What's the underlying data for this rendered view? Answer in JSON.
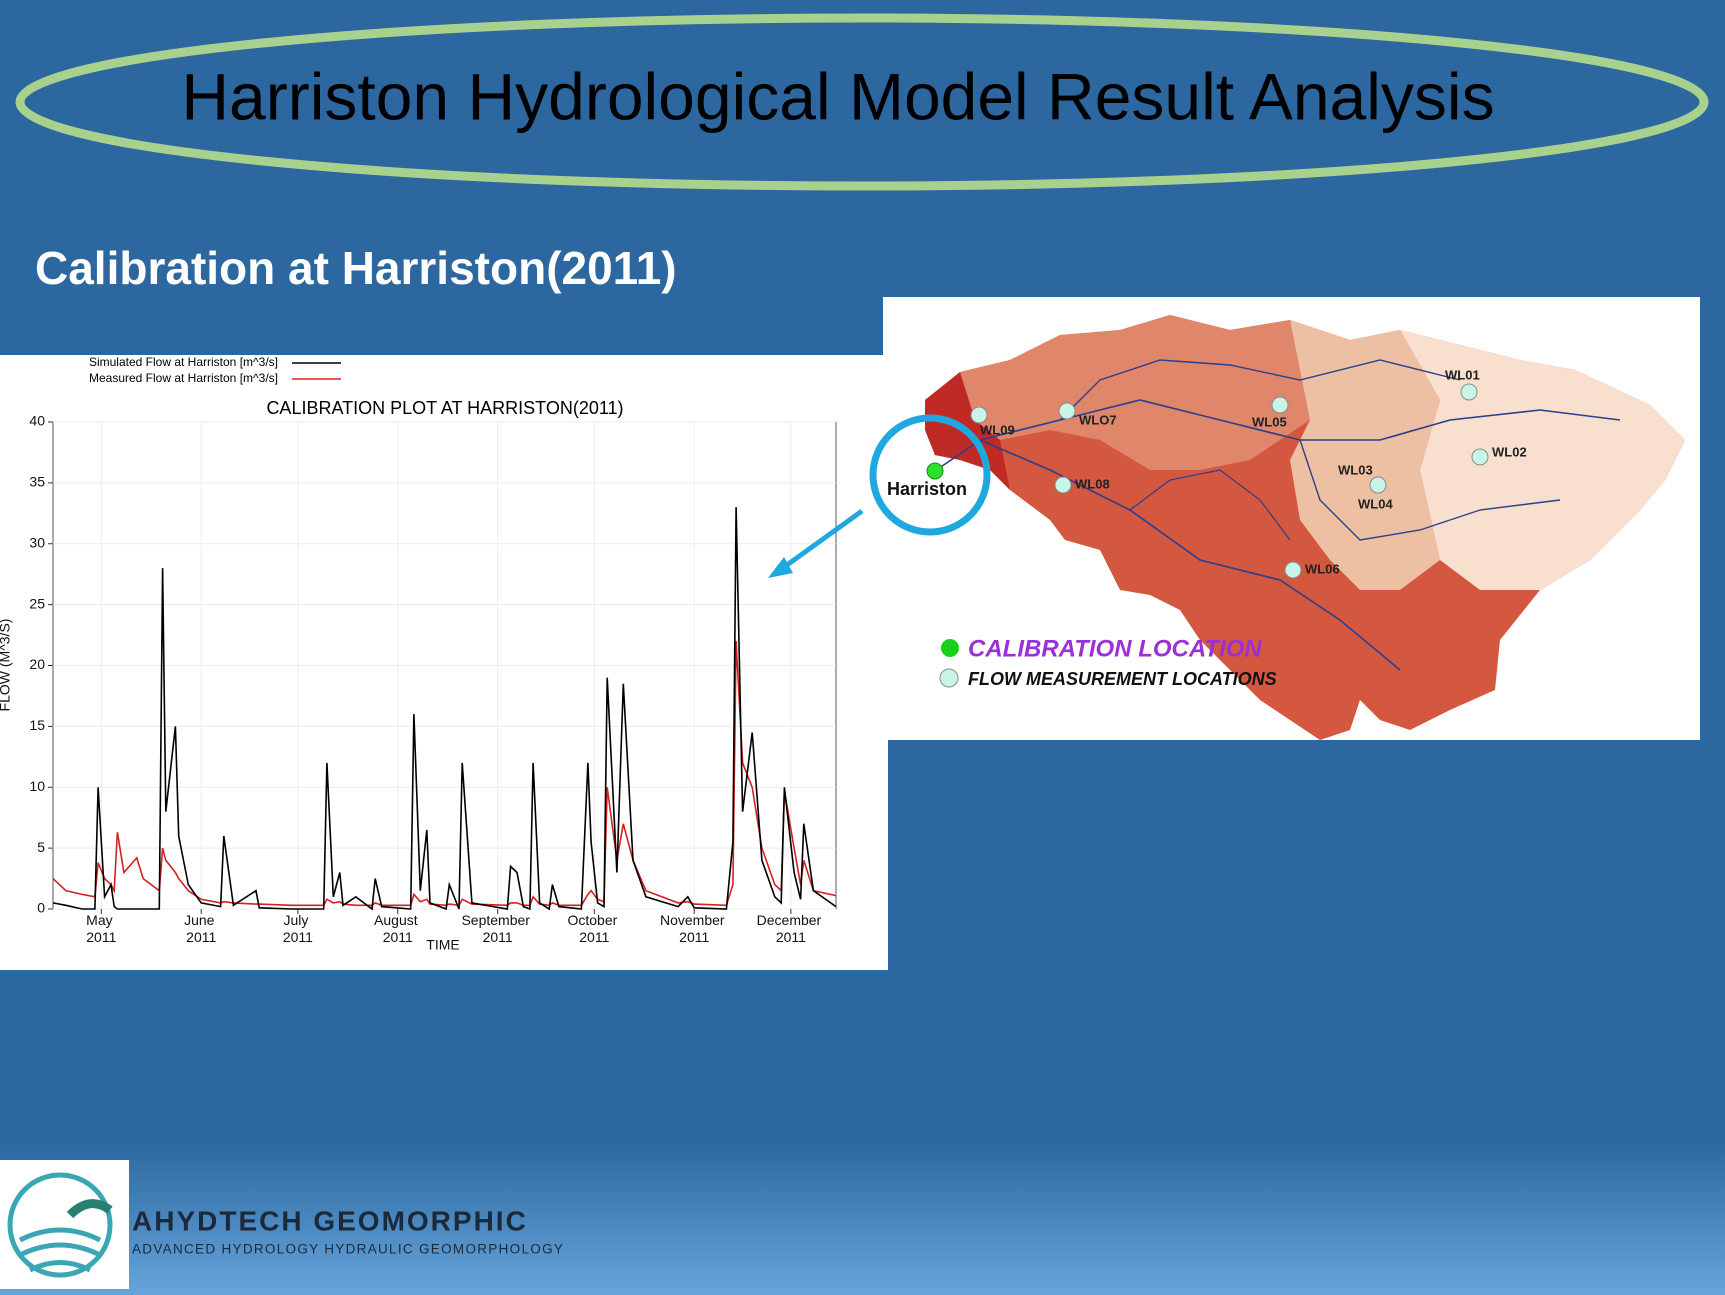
{
  "slide": {
    "title": "Harriston Hydrological Model Result Analysis",
    "subtitle": "Calibration at Harriston(2011)"
  },
  "map": {
    "calibration_label": "Harriston",
    "stations": [
      "WL09",
      "WLO7",
      "WL05",
      "WL01",
      "WL02",
      "WL03",
      "WL04",
      "WL08",
      "WL06"
    ],
    "legend": [
      "CALIBRATION LOCATION",
      "FLOW MEASUREMENT LOCATIONS"
    ]
  },
  "logo": {
    "name": "AHYDTECH GEOMORPHIC",
    "tagline": "ADVANCED HYDROLOGY HYDRAULIC GEOMORPHOLOGY"
  },
  "chart_data": {
    "type": "line",
    "title": "CALIBRATION PLOT AT HARRISTON(2011)",
    "x_label": "TIME",
    "y_label": "FLOW (M^3/S)",
    "xlim": [
      106,
      349
    ],
    "xticks": [
      {
        "value": 121,
        "label": "May 2011"
      },
      {
        "value": 152,
        "label": "June 2011"
      },
      {
        "value": 182,
        "label": "July 2011"
      },
      {
        "value": 213,
        "label": "August 2011"
      },
      {
        "value": 244,
        "label": "September 2011"
      },
      {
        "value": 274,
        "label": "October 2011"
      },
      {
        "value": 305,
        "label": "November 2011"
      },
      {
        "value": 335,
        "label": "December 2011"
      }
    ],
    "ylim": [
      0,
      40
    ],
    "yticks": [
      0,
      5,
      10,
      15,
      20,
      25,
      30,
      35,
      40
    ],
    "grid": true,
    "x": [
      106,
      110,
      115,
      119,
      120,
      122,
      124,
      125,
      126,
      128,
      132,
      134,
      139,
      140,
      141,
      144,
      145,
      148,
      152,
      158,
      159,
      162,
      169,
      170,
      180,
      190,
      191,
      193,
      195,
      196,
      200,
      205,
      206,
      208,
      217,
      218,
      220,
      222,
      223,
      228,
      229,
      232,
      233,
      236,
      247,
      248,
      250,
      252,
      254,
      255,
      257,
      260,
      261,
      263,
      270,
      272,
      273,
      275,
      277,
      278,
      281,
      283,
      286,
      290,
      300,
      303,
      305,
      315,
      317,
      318,
      320,
      323,
      326,
      330,
      332,
      333,
      336,
      338,
      339,
      342,
      349
    ],
    "series": [
      {
        "name": "Simulated Flow at Harriston [m^3/s]",
        "color": "#000000",
        "values": [
          0.5,
          0.3,
          0,
          0,
          10,
          1,
          2,
          0.2,
          0,
          0,
          0,
          0,
          0,
          28,
          8,
          15,
          6,
          2,
          0.5,
          0.2,
          6,
          0.3,
          1.5,
          0.1,
          0,
          0,
          12,
          1,
          3,
          0.3,
          1,
          0,
          2.5,
          0.2,
          0,
          16,
          1.5,
          6.5,
          0.5,
          0,
          2,
          0,
          12,
          0.5,
          0,
          3.5,
          3,
          0.2,
          0,
          12,
          0.5,
          0,
          2,
          0.2,
          0,
          12,
          5.5,
          0.5,
          0.2,
          19,
          3,
          18.5,
          4,
          1,
          0.2,
          1,
          0.1,
          0,
          5.5,
          33,
          8,
          14.5,
          4,
          1,
          0.5,
          10,
          3,
          0.8,
          7,
          1.5,
          0.2
        ]
      },
      {
        "name": "Measured Flow at Harriston [m^3/s]",
        "color": "#d62020",
        "values": [
          2.5,
          1.5,
          1.2,
          1,
          3.8,
          2.5,
          2,
          1.5,
          6.3,
          3,
          4.2,
          2.5,
          1.5,
          5,
          4,
          3,
          2.5,
          1.5,
          0.8,
          0.5,
          0.6,
          0.5,
          0.4,
          0.4,
          0.3,
          0.3,
          0.8,
          0.5,
          0.6,
          0.4,
          0.3,
          0.3,
          0.5,
          0.3,
          0.3,
          1.2,
          0.6,
          0.8,
          0.4,
          0.3,
          0.4,
          0.3,
          0.8,
          0.4,
          0.3,
          0.5,
          0.5,
          0.3,
          0.3,
          1,
          0.4,
          0.3,
          0.5,
          0.3,
          0.3,
          1.2,
          1.5,
          0.8,
          0.6,
          10,
          4,
          7,
          4,
          1.5,
          0.5,
          0.6,
          0.4,
          0.3,
          2,
          22,
          12,
          10,
          5,
          2,
          1.5,
          9.7,
          5,
          2,
          4,
          1.5,
          1.1
        ]
      }
    ]
  }
}
